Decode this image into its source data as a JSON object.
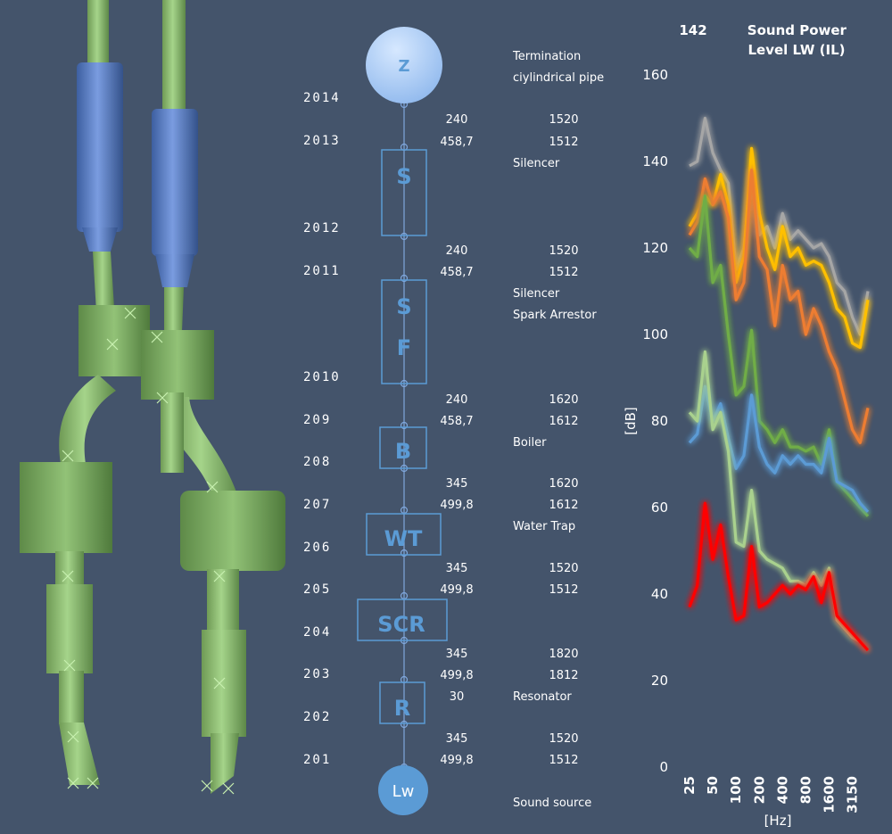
{
  "diagram": {
    "nodes": [
      {
        "label": "Z"
      },
      {
        "label": "S"
      },
      {
        "label": "S"
      },
      {
        "label": "F"
      },
      {
        "label": "B"
      },
      {
        "label": "WT"
      },
      {
        "label": "SCR"
      },
      {
        "label": "R"
      },
      {
        "label": "Lw"
      }
    ],
    "stations": [
      "2014",
      "2013",
      "2012",
      "2011",
      "2010",
      "209",
      "208",
      "207",
      "206",
      "205",
      "204",
      "203",
      "202",
      "201"
    ],
    "values": [
      {
        "a": "240",
        "b": "1520"
      },
      {
        "a": "458,7",
        "b": "1512"
      },
      {
        "a": "240",
        "b": "1520"
      },
      {
        "a": "458,7",
        "b": "1512"
      },
      {
        "a": "240",
        "b": "1620"
      },
      {
        "a": "458,7",
        "b": "1612"
      },
      {
        "a": "345",
        "b": "1620"
      },
      {
        "a": "499,8",
        "b": "1612"
      },
      {
        "a": "345",
        "b": "1520"
      },
      {
        "a": "499,8",
        "b": "1512"
      },
      {
        "a": "345",
        "b": "1820"
      },
      {
        "a": "499,8",
        "b": "1812"
      },
      {
        "a": "30",
        "b": ""
      },
      {
        "a": "345",
        "b": "1520"
      },
      {
        "a": "499,8",
        "b": "1512"
      }
    ],
    "descriptions": [
      "Termination",
      "ciylindrical pipe",
      "Silencer",
      "Silencer",
      "Spark Arrestor",
      "Boiler",
      "Water Trap",
      "Resonator",
      "Sound source"
    ]
  },
  "chart_data": {
    "type": "line",
    "title_value": "142",
    "title": "Sound Power Level LW (IL)",
    "ylabel": "[dB]",
    "xlabel": "[Hz]",
    "ylim": [
      0,
      160
    ],
    "yticks": [
      "160",
      "140",
      "120",
      "100",
      "80",
      "60",
      "40",
      "20",
      "0"
    ],
    "xtick_labels": [
      "25",
      "50",
      "100",
      "200",
      "400",
      "800",
      "1600",
      "3150"
    ],
    "bands": [
      "25",
      "31.5",
      "40",
      "50",
      "63",
      "80",
      "100",
      "125",
      "160",
      "200",
      "250",
      "315",
      "400",
      "500",
      "630",
      "800",
      "1000",
      "1250",
      "1600",
      "2000",
      "2500",
      "3150",
      "4000",
      "5000"
    ],
    "series": [
      {
        "color": "#a6a6a6",
        "values": [
          139,
          140,
          150,
          142,
          138,
          135,
          115,
          120,
          138,
          123,
          125,
          120,
          128,
          122,
          124,
          122,
          120,
          121,
          118,
          112,
          110,
          104,
          100,
          110
        ]
      },
      {
        "color": "#ffc000",
        "values": [
          125,
          128,
          132,
          130,
          137,
          130,
          112,
          118,
          143,
          128,
          120,
          115,
          125,
          118,
          120,
          116,
          117,
          116,
          112,
          106,
          104,
          98,
          97,
          108
        ]
      },
      {
        "color": "#ed7d31",
        "values": [
          123,
          126,
          136,
          130,
          133,
          127,
          108,
          112,
          138,
          118,
          115,
          102,
          116,
          108,
          110,
          100,
          106,
          102,
          96,
          92,
          85,
          78,
          75,
          83
        ]
      },
      {
        "color": "#70ad47",
        "values": [
          120,
          118,
          132,
          112,
          116,
          100,
          86,
          88,
          101,
          80,
          78,
          75,
          78,
          74,
          74,
          73,
          74,
          70,
          78,
          66,
          64,
          62,
          60,
          58
        ]
      },
      {
        "color": "#5b9bd5",
        "values": [
          75,
          77,
          88,
          80,
          84,
          76,
          69,
          72,
          86,
          74,
          70,
          68,
          72,
          70,
          72,
          70,
          70,
          68,
          76,
          66,
          65,
          64,
          61,
          59
        ]
      },
      {
        "color": "#a9d18e",
        "values": [
          82,
          80,
          96,
          78,
          82,
          73,
          52,
          51,
          64,
          50,
          48,
          47,
          46,
          43,
          43,
          42,
          45,
          42,
          46,
          34,
          32,
          30,
          29,
          27
        ]
      },
      {
        "color": "#ff0000",
        "values": [
          37,
          42,
          61,
          48,
          56,
          44,
          34,
          35,
          51,
          37,
          38,
          40,
          42,
          40,
          42,
          41,
          44,
          38,
          45,
          35,
          33,
          31,
          29,
          27
        ]
      }
    ]
  }
}
